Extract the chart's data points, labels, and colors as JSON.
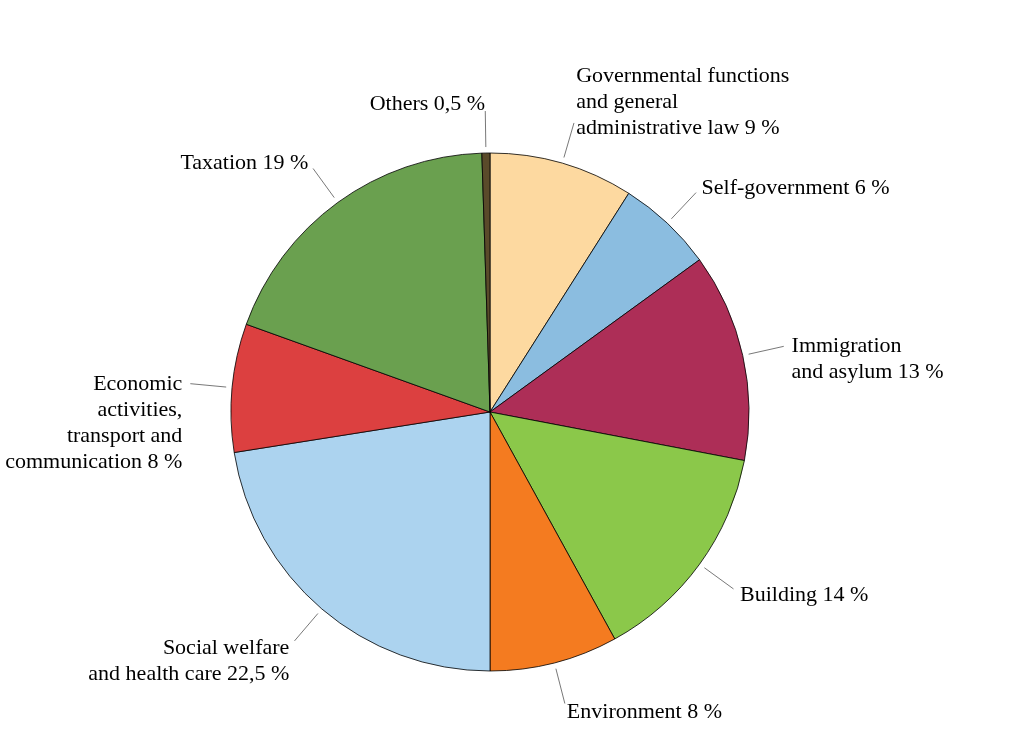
{
  "chart_data": {
    "type": "pie",
    "categories": [
      "Governmental functions and general administrative law",
      "Self-government",
      "Immigration and asylum",
      "Building",
      "Environment",
      "Social welfare and health care",
      "Economic activities, transport and communication",
      "Taxation",
      "Others"
    ],
    "values": [
      9,
      6,
      13,
      14,
      8,
      22.5,
      8,
      19,
      0.5
    ],
    "value_labels": [
      "9 %",
      "6 %",
      "13 %",
      "14 %",
      "8 %",
      "22,5 %",
      "8 %",
      "19 %",
      "0,5 %"
    ],
    "colors": [
      "#fdd9a0",
      "#8bbde0",
      "#ad2e57",
      "#8bc84a",
      "#f47b20",
      "#acd3ef",
      "#dc4040",
      "#6aa04f",
      "#5a4a2a"
    ]
  }
}
